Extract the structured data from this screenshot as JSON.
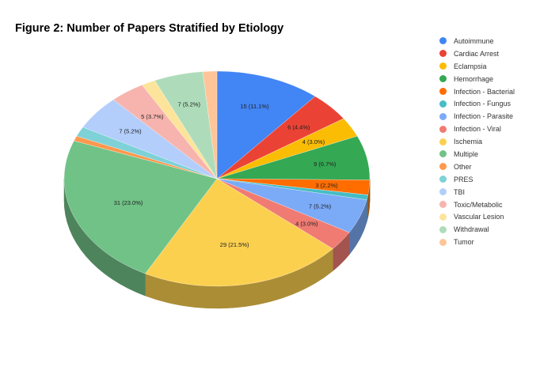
{
  "chart_data": {
    "type": "pie",
    "title": "Figure 2: Number of Papers Stratified by Etiology",
    "legend_position": "right",
    "three_d": true,
    "slices": [
      {
        "label": "Autoimmune",
        "value": 15,
        "percent": "11.1%",
        "color": "#4285F4"
      },
      {
        "label": "Cardiac Arrest",
        "value": 6,
        "percent": "4.4%",
        "color": "#EA4335"
      },
      {
        "label": "Eclampsia",
        "value": 4,
        "percent": "3.0%",
        "color": "#FBBC04"
      },
      {
        "label": "Hemorrhage",
        "value": 9,
        "percent": "6.7%",
        "color": "#34A853"
      },
      {
        "label": "Infection - Bacterial",
        "value": 3,
        "percent": "2.2%",
        "color": "#FF6D01"
      },
      {
        "label": "Infection - Fungus",
        "value": 1,
        "percent": "0.7%",
        "color": "#46BDC6"
      },
      {
        "label": "Infection - Parasite",
        "value": 7,
        "percent": "5.2%",
        "color": "#7BAAF7"
      },
      {
        "label": "Infection - Viral",
        "value": 4,
        "percent": "3.0%",
        "color": "#F07B72"
      },
      {
        "label": "Ischemia",
        "value": 29,
        "percent": "21.5%",
        "color": "#FCD04F"
      },
      {
        "label": "Multiple",
        "value": 31,
        "percent": "23.0%",
        "color": "#71C287"
      },
      {
        "label": "Other",
        "value": 1,
        "percent": "0.7%",
        "color": "#FF994D"
      },
      {
        "label": "PRES",
        "value": 2,
        "percent": "1.5%",
        "color": "#7ED1D7"
      },
      {
        "label": "TBI",
        "value": 7,
        "percent": "5.2%",
        "color": "#B3CEFB"
      },
      {
        "label": "Toxic/Metabolic",
        "value": 5,
        "percent": "3.7%",
        "color": "#F7B4AE"
      },
      {
        "label": "Vascular Lesion",
        "value": 2,
        "percent": "1.5%",
        "color": "#FDE49B"
      },
      {
        "label": "Withdrawal",
        "value": 7,
        "percent": "5.2%",
        "color": "#AEDCBA"
      },
      {
        "label": "Tumor",
        "value": 2,
        "percent": "1.5%",
        "color": "#FFC599"
      }
    ]
  }
}
